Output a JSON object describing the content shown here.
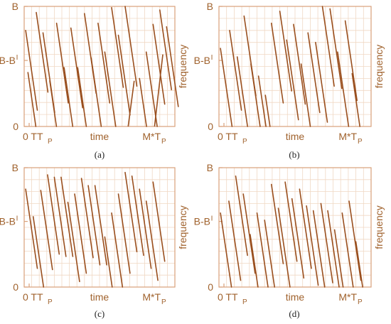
{
  "colors": {
    "line": "#9a4f1e",
    "frame": "#d9a07a",
    "grid": "#f0d8c4",
    "text": "#a0622d"
  },
  "chart_data": [
    {
      "id": "a",
      "type": "line",
      "caption": "(a)",
      "xlabel": "time",
      "ylabel": "frequency",
      "y_ticks": {
        "top": "B",
        "middle": "B-B",
        "middle_sup": "I",
        "bottom": "0"
      },
      "x_ticks": {
        "left": "0 TT",
        "left_sub": "P",
        "right": "M*T",
        "right_sub": "P"
      },
      "xlim": [
        0,
        20
      ],
      "ylim": [
        0,
        1
      ],
      "grid": true,
      "chirps": [
        [
          0.2,
          0.8
        ],
        [
          0.5,
          0.45
        ],
        [
          1.6,
          0.95
        ],
        [
          2.5,
          0.78
        ],
        [
          3.4,
          0.38
        ],
        [
          4.3,
          0.86
        ],
        [
          5.3,
          0.49
        ],
        [
          6.2,
          0.82
        ],
        [
          7.1,
          0.49
        ],
        [
          8.0,
          0.94
        ],
        [
          8.9,
          0.57
        ],
        [
          9.8,
          0.86
        ],
        [
          10.7,
          0.62
        ],
        [
          11.6,
          0.99
        ],
        [
          12.5,
          0.76
        ],
        [
          13.4,
          1.0
        ],
        [
          15.3,
          0.4
        ],
        [
          16.2,
          0.62
        ],
        [
          17.1,
          0.85
        ],
        [
          18.0,
          0.97
        ],
        [
          18.9,
          0.83
        ]
      ]
    },
    {
      "id": "b",
      "type": "line",
      "caption": "(b)",
      "xlabel": "time",
      "ylabel": "frequency",
      "y_ticks": {
        "top": "B",
        "middle": "B-B",
        "middle_sup": "I",
        "bottom": "0"
      },
      "x_ticks": {
        "left": "0 TT",
        "left_sub": "P",
        "right": "M*T",
        "right_sub": "P"
      },
      "xlim": [
        0,
        20
      ],
      "ylim": [
        0,
        1
      ],
      "grid": true,
      "chirps": [
        [
          0.2,
          0.65
        ],
        [
          1.4,
          0.8
        ],
        [
          2.4,
          0.58
        ],
        [
          3.3,
          0.92
        ],
        [
          4.2,
          0.52
        ],
        [
          5.2,
          0.42
        ],
        [
          6.1,
          0.26
        ],
        [
          6.9,
          0.86
        ],
        [
          8.0,
          0.96
        ],
        [
          8.9,
          0.72
        ],
        [
          9.8,
          0.85
        ],
        [
          10.8,
          0.52
        ],
        [
          11.7,
          0.78
        ],
        [
          12.7,
          0.7
        ],
        [
          13.6,
          1.0
        ],
        [
          14.6,
          0.98
        ],
        [
          15.6,
          0.62
        ],
        [
          16.6,
          0.88
        ],
        [
          17.5,
          0.44
        ]
      ]
    },
    {
      "id": "c",
      "type": "line",
      "caption": "(c)",
      "xlabel": "time",
      "ylabel": "frequency",
      "y_ticks": {
        "top": "B",
        "middle": "B-B",
        "middle_sup": "I",
        "bottom": "0"
      },
      "x_ticks": {
        "left": "0 TT",
        "left_sub": "P",
        "right": "M*T",
        "right_sub": "P"
      },
      "xlim": [
        0,
        20
      ],
      "ylim": [
        0,
        1
      ],
      "grid": true,
      "chirps": [
        [
          0.2,
          0.82
        ],
        [
          1.2,
          0.59
        ],
        [
          2.2,
          0.81
        ],
        [
          3.1,
          0.94
        ],
        [
          4.0,
          0.92
        ],
        [
          4.9,
          0.92
        ],
        [
          5.8,
          0.71
        ],
        [
          6.7,
          0.78
        ],
        [
          7.6,
          0.91
        ],
        [
          8.5,
          0.85
        ],
        [
          9.4,
          0.85
        ],
        [
          10.7,
          0.42
        ],
        [
          11.6,
          0.62
        ],
        [
          12.5,
          0.78
        ],
        [
          13.4,
          0.96
        ],
        [
          14.3,
          0.93
        ],
        [
          15.3,
          0.82
        ],
        [
          16.2,
          0.72
        ],
        [
          17.1,
          0.88
        ]
      ]
    },
    {
      "id": "d",
      "type": "line",
      "caption": "(d)",
      "xlabel": "time",
      "ylabel": "frequency",
      "y_ticks": {
        "top": "B",
        "middle": "B-B",
        "middle_sup": "I",
        "bottom": "0"
      },
      "x_ticks": {
        "left": "0 TT",
        "left_sub": "P",
        "right": "M*T",
        "right_sub": "P"
      },
      "xlim": [
        0,
        20
      ],
      "ylim": [
        0,
        1
      ],
      "grid": true,
      "chirps": [
        [
          0.2,
          0.62
        ],
        [
          1.3,
          0.72
        ],
        [
          2.2,
          0.93
        ],
        [
          3.2,
          0.78
        ],
        [
          4.1,
          0.44
        ],
        [
          5.0,
          0.62
        ],
        [
          6.0,
          0.56
        ],
        [
          6.9,
          0.86
        ],
        [
          7.8,
          0.66
        ],
        [
          8.7,
          0.88
        ],
        [
          9.6,
          0.74
        ],
        [
          10.6,
          0.82
        ],
        [
          11.5,
          0.68
        ],
        [
          12.4,
          0.64
        ],
        [
          13.4,
          0.7
        ],
        [
          14.3,
          0.64
        ],
        [
          15.2,
          0.48
        ],
        [
          16.2,
          0.62
        ],
        [
          17.1,
          0.72
        ],
        [
          18.0,
          0.38
        ]
      ]
    }
  ]
}
